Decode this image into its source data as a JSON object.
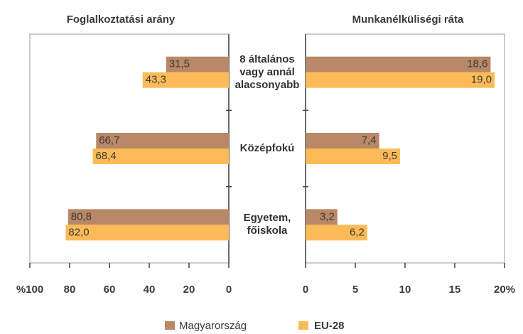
{
  "chart_data": [
    {
      "type": "bar",
      "orientation": "horizontal",
      "title": "Foglalkoztatási arány",
      "categories": [
        "8 általános vagy annál alacsonyabb",
        "Középfokú",
        "Egyetem, főiskola"
      ],
      "series": [
        {
          "name": "Magyarország",
          "color": "#b98867",
          "values": [
            31.5,
            66.7,
            80.8
          ],
          "value_labels": [
            "31,5",
            "66,7",
            "80,8"
          ]
        },
        {
          "name": "EU-28",
          "color": "#fcbb58",
          "values": [
            43.3,
            68.4,
            82.0
          ],
          "value_labels": [
            "43,3",
            "68,4",
            "82,0"
          ]
        }
      ],
      "xlim": [
        100,
        0
      ],
      "xticks": [
        {
          "value": 100,
          "label": "%100"
        },
        80,
        60,
        40,
        20,
        0
      ]
    },
    {
      "type": "bar",
      "orientation": "horizontal",
      "title": "Munkanélküliségi ráta",
      "series": [
        {
          "color": "#b98867",
          "values": [
            18.6,
            7.4,
            3.2
          ],
          "value_labels": [
            "18,6",
            "7,4",
            "3,2"
          ]
        },
        {
          "color": "#fcbb58",
          "values": [
            19.0,
            9.5,
            6.2
          ],
          "value_labels": [
            "19,0",
            "9,5",
            "6,2"
          ]
        }
      ],
      "xlim": [
        0,
        20
      ],
      "xticks": [
        0,
        5,
        10,
        15,
        {
          "value": 20,
          "label": "20%"
        }
      ]
    }
  ]
}
